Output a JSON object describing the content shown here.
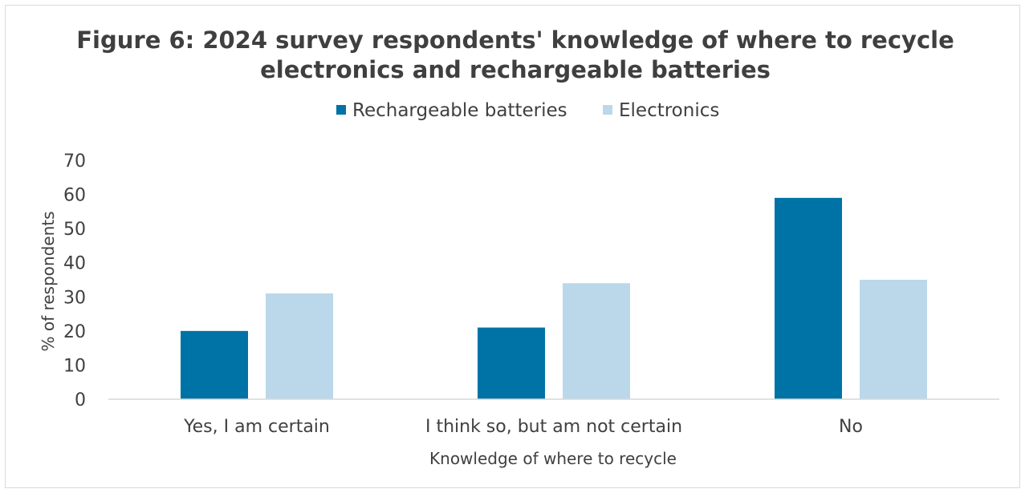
{
  "chart_data": {
    "type": "bar",
    "title": "Figure 6: 2024 survey respondents' knowledge of where to recycle electronics and rechargeable batteries",
    "title_lines": [
      "Figure 6: 2024 survey respondents' knowledge of where to recycle",
      "electronics and rechargeable batteries"
    ],
    "xlabel": "Knowledge of where to recycle",
    "ylabel": "% of respondents",
    "ylim": [
      0,
      70
    ],
    "yticks": [
      "0",
      "10",
      "20",
      "30",
      "40",
      "50",
      "60",
      "70"
    ],
    "grid": false,
    "legend_position": "top",
    "categories": [
      "Yes, I am certain",
      "I think so, but am not certain",
      "No"
    ],
    "series": [
      {
        "name": "Rechargeable batteries",
        "color": "#0073a6",
        "values": [
          20,
          21,
          59
        ]
      },
      {
        "name": "Electronics",
        "color": "#bad8ea",
        "values": [
          31,
          34,
          35
        ]
      }
    ]
  }
}
